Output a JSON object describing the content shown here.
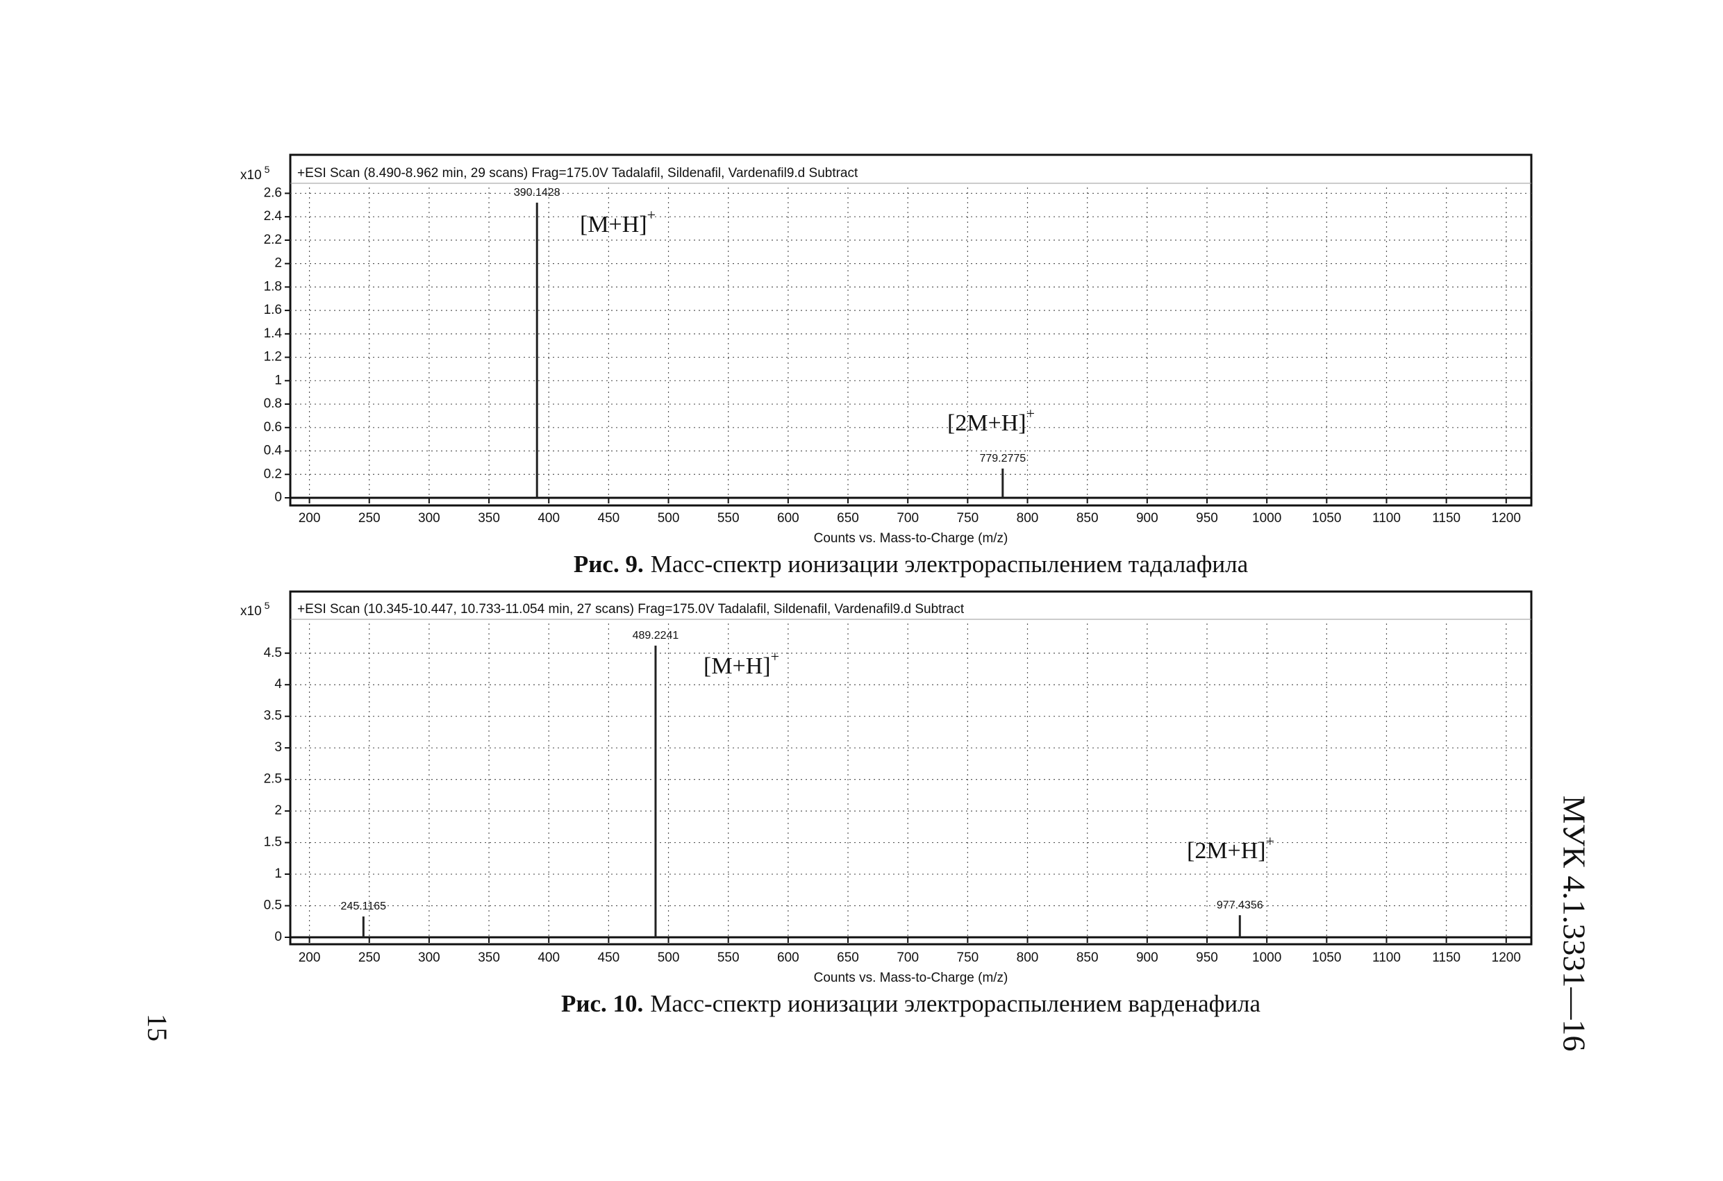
{
  "chart_data": [
    {
      "type": "bar",
      "title": "+ESI Scan (8.490-8.962 min, 29 scans) Frag=175.0V Tadalafil, Sildenafil, Vardenafil9.d  Subtract",
      "y_scale": "x10",
      "y_scale_exponent": "5",
      "x_label": "Counts vs. Mass-to-Charge (m/z)",
      "caption_label": "Рис. 9.",
      "caption_text": "Масс-спектр ионизации электрораспылением тадалафила",
      "x": [
        390.1428,
        779.2775
      ],
      "values": [
        2.52,
        0.25
      ],
      "annotations": [
        {
          "text": "[M+H]",
          "sup": "+"
        },
        {
          "text": "[2M+H]",
          "sup": "+"
        }
      ],
      "xlim": [
        184,
        1221
      ],
      "xticks": [
        200,
        250,
        300,
        350,
        400,
        450,
        500,
        550,
        600,
        650,
        700,
        750,
        800,
        850,
        900,
        950,
        1000,
        1050,
        1100,
        1150,
        1200
      ],
      "ylim": [
        0,
        2.65
      ],
      "yticks": [
        0,
        0.2,
        0.4,
        0.6,
        0.8,
        1,
        1.2,
        1.4,
        1.6,
        1.8,
        2,
        2.2,
        2.4,
        2.6
      ],
      "grid": true,
      "color": "#222222"
    },
    {
      "type": "bar",
      "title": "+ESI Scan (10.345-10.447, 10.733-11.054 min, 27 scans) Frag=175.0V Tadalafil, Sildenafil, Vardenafil9.d  Subtract",
      "y_scale": "x10",
      "y_scale_exponent": "5",
      "x_label": "Counts vs. Mass-to-Charge (m/z)",
      "caption_label": "Рис. 10.",
      "caption_text": "Масс-спектр ионизации электрораспылением варденафила",
      "x": [
        245.1165,
        489.2241,
        977.4356
      ],
      "values": [
        0.33,
        4.62,
        0.35
      ],
      "annotations": [
        {
          "text": "[M+H]",
          "sup": "+"
        },
        {
          "text": "[2M+H]",
          "sup": "+"
        }
      ],
      "xlim": [
        184,
        1221
      ],
      "xticks": [
        200,
        250,
        300,
        350,
        400,
        450,
        500,
        550,
        600,
        650,
        700,
        750,
        800,
        850,
        900,
        950,
        1000,
        1050,
        1100,
        1150,
        1200
      ],
      "ylim": [
        0,
        4.97
      ],
      "yticks": [
        0,
        0.5,
        1,
        1.5,
        2,
        2.5,
        3,
        3.5,
        4,
        4.5
      ],
      "grid": true,
      "color": "#222222"
    }
  ],
  "page_number": "15",
  "side_header": "МУК 4.1.3331—16"
}
